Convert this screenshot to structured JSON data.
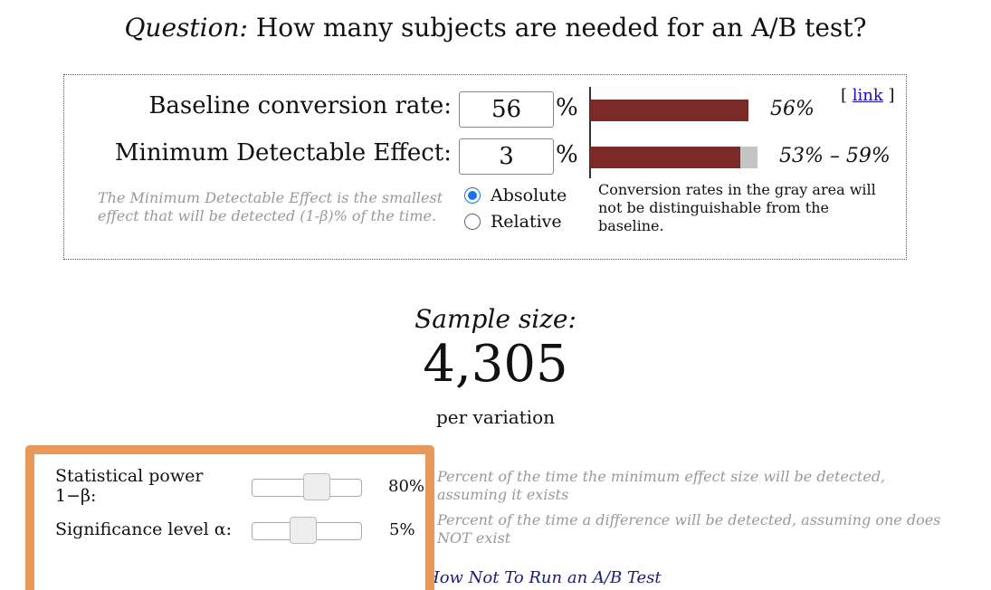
{
  "header": {
    "question_label": "Question:",
    "question": "How many subjects are needed for an A/B test?"
  },
  "form": {
    "baseline_label": "Baseline conversion rate:",
    "baseline_value": "56",
    "baseline_unit": "%",
    "mde_label": "Minimum Detectable Effect:",
    "mde_value": "3",
    "mde_unit": "%",
    "baseline_bar_label": "56%",
    "range_bar_label": "53% – 59%",
    "link_open": "[",
    "link": "link",
    "link_close": "]",
    "mde_note": "The Minimum Detectable Effect is the smallest effect that will be detected (1-β)% of the time.",
    "options": [
      "Absolute",
      "Relative"
    ],
    "gray_note": "Conversion rates in the gray area will not be distinguishable from the baseline."
  },
  "result": {
    "label": "Sample size:",
    "value": "4,305",
    "unit": "per variation"
  },
  "settings": [
    {
      "label": "Statistical power 1−β:",
      "value": "80%",
      "description": "Percent of the time the minimum effect size will be detected, assuming it exists"
    },
    {
      "label": "Significance level α:",
      "value": "5%",
      "description": "Percent of the time a difference will be detected, assuming one does NOT exist"
    }
  ],
  "footer": {
    "link": "How Not To Run an A/B Test"
  }
}
